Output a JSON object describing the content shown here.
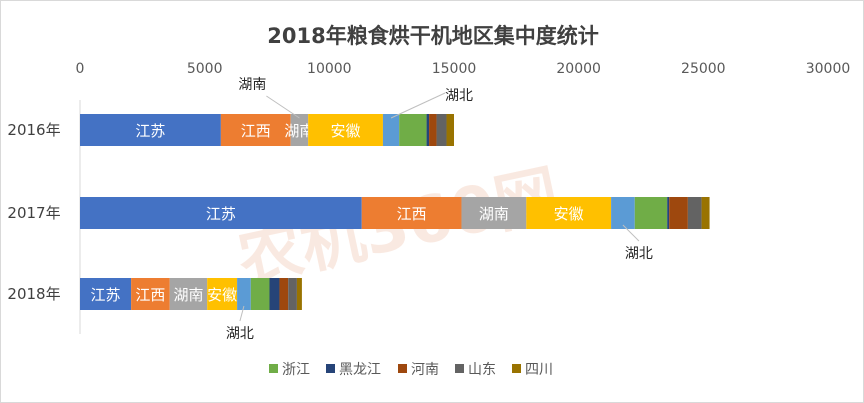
{
  "chart_data": {
    "type": "bar",
    "orientation": "horizontal",
    "stacked": true,
    "title": "2018年粮食烘干机地区集中度统计",
    "categories": [
      "2016年",
      "2017年",
      "2018年"
    ],
    "xlim": [
      0,
      30000
    ],
    "xticks": [
      0,
      5000,
      10000,
      15000,
      20000,
      25000,
      30000
    ],
    "xaxis_position": "top",
    "grid": false,
    "legend_position": "bottom",
    "series": [
      {
        "name": "江苏",
        "values": [
          5650,
          11300,
          2050
        ],
        "color": "#4472C4",
        "label_inside": true
      },
      {
        "name": "江西",
        "values": [
          2800,
          4000,
          1550
        ],
        "color": "#ED7D31",
        "label_inside": true
      },
      {
        "name": "湖南",
        "values": [
          700,
          2600,
          1500
        ],
        "color": "#A5A5A5",
        "label_inside": true
      },
      {
        "name": "安徽",
        "values": [
          3000,
          3400,
          1200
        ],
        "color": "#FFC000",
        "label_inside": true
      },
      {
        "name": "湖北",
        "values": [
          650,
          950,
          550
        ],
        "color": "#5B9BD5",
        "label_inside": false
      },
      {
        "name": "浙江",
        "values": [
          1100,
          1300,
          750
        ],
        "color": "#70AD47",
        "legend": true
      },
      {
        "name": "黑龙江",
        "values": [
          100,
          80,
          400
        ],
        "color": "#264478",
        "legend": true
      },
      {
        "name": "河南",
        "values": [
          300,
          750,
          350
        ],
        "color": "#9E480E",
        "legend": true
      },
      {
        "name": "山东",
        "values": [
          400,
          550,
          350
        ],
        "color": "#636363",
        "legend": true
      },
      {
        "name": "四川",
        "values": [
          300,
          320,
          200
        ],
        "color": "#997300",
        "legend": true
      }
    ],
    "callouts": [
      {
        "text": "湖南",
        "category": "2016年"
      },
      {
        "text": "湖北",
        "category": "2016年"
      },
      {
        "text": "湖北",
        "category": "2017年"
      },
      {
        "text": "湖北",
        "category": "2018年"
      }
    ]
  },
  "watermark": {
    "text": "农机360网",
    "color": "#e8a07c"
  }
}
